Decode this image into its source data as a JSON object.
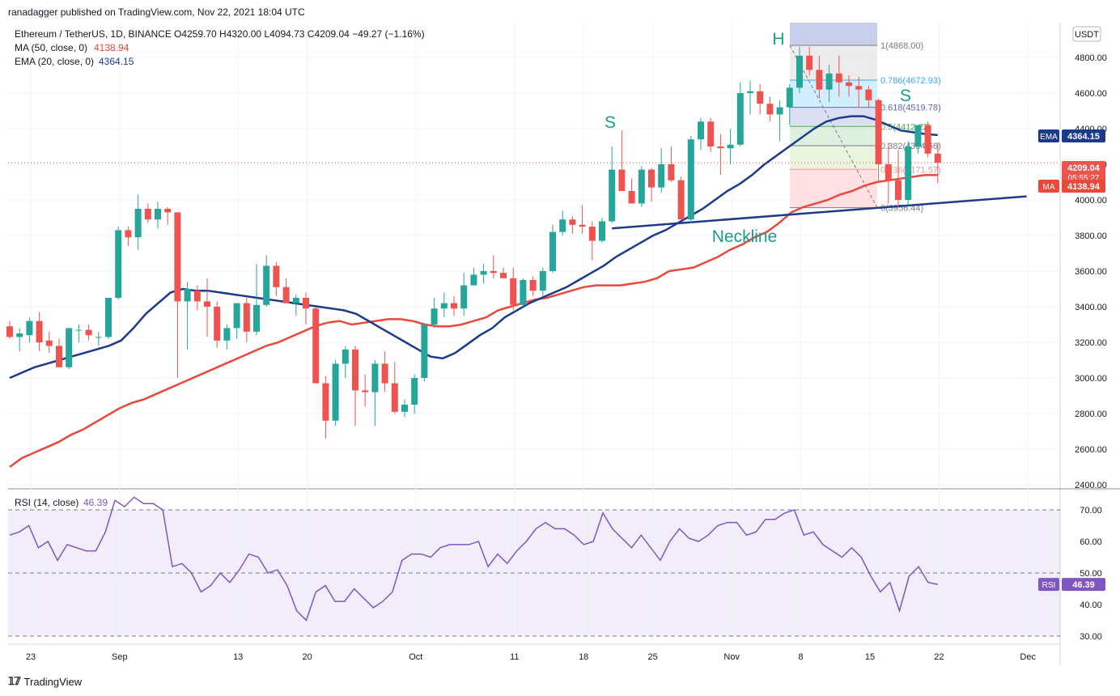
{
  "header": {
    "attribution": "ranadagger published on TradingView.com, Nov 22, 2021 18:04 UTC"
  },
  "footer": {
    "brand": "TradingView"
  },
  "legend": {
    "symbol": "Ethereum / TetherUS, 1D, BINANCE",
    "ohlc": "O4259.70  H4320.00  L4094.73  C4209.04  −49.27 (−1.16%)",
    "ma_label": "MA (50, close, 0)",
    "ma_value": "4138.94",
    "ema_label": "EMA (20, close, 0)",
    "ema_value": "4364.15",
    "rsi_label": "RSI (14, close)",
    "rsi_value": "46.39"
  },
  "currency_badge": "USDT",
  "colors": {
    "up": "#26a69a",
    "down": "#ef5350",
    "ma": "#e8493a",
    "ema": "#1b3a8a",
    "rsi": "#7e57c2",
    "neckline": "#1f3c88",
    "pattern_text": "#1a9c8c"
  },
  "annotations": {
    "head": "H",
    "left_shoulder": "S",
    "right_shoulder": "S",
    "neckline": "Neckline"
  },
  "price_badges": {
    "ema": {
      "tag": "EMA",
      "value": "4364.15",
      "price": 4364.15
    },
    "last": {
      "value": "4209.04",
      "countdown": "05:55:27",
      "price": 4209.04
    },
    "ma": {
      "tag": "MA",
      "value": "4138.94",
      "price": 4138.94
    },
    "rsi": {
      "tag": "RSI",
      "value": "46.39",
      "level": 46.39
    }
  },
  "chart_data": {
    "type": "candlestick",
    "title": "Ethereum / TetherUS, 1D, BINANCE",
    "price_range": [
      2380,
      4980
    ],
    "y_ticks": [
      "2400.00",
      "2600.00",
      "2800.00",
      "3000.00",
      "3200.00",
      "3400.00",
      "3600.00",
      "3800.00",
      "4000.00",
      "4200.00",
      "4400.00",
      "4600.00",
      "4800.00"
    ],
    "x_ticks": [
      {
        "label": "23",
        "day": 0
      },
      {
        "label": "Sep",
        "day": 9
      },
      {
        "label": "13",
        "day": 21
      },
      {
        "label": "20",
        "day": 28
      },
      {
        "label": "Oct",
        "day": 39
      },
      {
        "label": "11",
        "day": 49
      },
      {
        "label": "18",
        "day": 56
      },
      {
        "label": "25",
        "day": 63
      },
      {
        "label": "Nov",
        "day": 71
      },
      {
        "label": "8",
        "day": 78
      },
      {
        "label": "15",
        "day": 85
      },
      {
        "label": "22",
        "day": 92
      },
      {
        "label": "Dec",
        "day": 101
      }
    ],
    "candles": [
      [
        3290,
        3320,
        3220,
        3230
      ],
      [
        3230,
        3280,
        3150,
        3250
      ],
      [
        3240,
        3340,
        3200,
        3320
      ],
      [
        3320,
        3370,
        3150,
        3200
      ],
      [
        3210,
        3260,
        3140,
        3180
      ],
      [
        3180,
        3220,
        3060,
        3060
      ],
      [
        3060,
        3280,
        3050,
        3280
      ],
      [
        3270,
        3300,
        3200,
        3270
      ],
      [
        3270,
        3300,
        3210,
        3240
      ],
      [
        3230,
        3260,
        3180,
        3230
      ],
      [
        3230,
        3450,
        3220,
        3450
      ],
      [
        3450,
        3850,
        3440,
        3830
      ],
      [
        3830,
        3850,
        3740,
        3790
      ],
      [
        3790,
        4030,
        3720,
        3950
      ],
      [
        3950,
        3980,
        3870,
        3890
      ],
      [
        3890,
        3990,
        3840,
        3950
      ],
      [
        3950,
        3960,
        3860,
        3930
      ],
      [
        3930,
        3930,
        3000,
        3430
      ],
      [
        3430,
        3540,
        3160,
        3500
      ],
      [
        3490,
        3520,
        3380,
        3430
      ],
      [
        3430,
        3560,
        3230,
        3400
      ],
      [
        3400,
        3430,
        3170,
        3210
      ],
      [
        3210,
        3300,
        3160,
        3280
      ],
      [
        3280,
        3420,
        3220,
        3420
      ],
      [
        3420,
        3450,
        3200,
        3260
      ],
      [
        3260,
        3640,
        3240,
        3410
      ],
      [
        3410,
        3690,
        3400,
        3630
      ],
      [
        3630,
        3650,
        3460,
        3510
      ],
      [
        3510,
        3560,
        3420,
        3420
      ],
      [
        3420,
        3470,
        3350,
        3450
      ],
      [
        3450,
        3480,
        3300,
        3390
      ],
      [
        3390,
        3400,
        2990,
        2970
      ],
      [
        2970,
        3010,
        2660,
        2760
      ],
      [
        2760,
        3100,
        2730,
        3080
      ],
      [
        3080,
        3180,
        3000,
        3160
      ],
      [
        3160,
        3180,
        2730,
        2930
      ],
      [
        2930,
        3020,
        2840,
        2920
      ],
      [
        2920,
        3100,
        2730,
        3080
      ],
      [
        3080,
        3150,
        2920,
        2970
      ],
      [
        2970,
        3090,
        2800,
        2810
      ],
      [
        2810,
        2880,
        2780,
        2850
      ],
      [
        2850,
        3020,
        2800,
        3000
      ],
      [
        3000,
        3310,
        2980,
        3300
      ],
      [
        3300,
        3450,
        3280,
        3390
      ],
      [
        3390,
        3480,
        3340,
        3420
      ],
      [
        3420,
        3460,
        3350,
        3390
      ],
      [
        3390,
        3590,
        3350,
        3520
      ],
      [
        3520,
        3620,
        3520,
        3580
      ],
      [
        3580,
        3640,
        3530,
        3600
      ],
      [
        3600,
        3690,
        3560,
        3590
      ],
      [
        3590,
        3620,
        3560,
        3560
      ],
      [
        3560,
        3620,
        3380,
        3410
      ],
      [
        3410,
        3560,
        3400,
        3550
      ],
      [
        3550,
        3570,
        3460,
        3490
      ],
      [
        3490,
        3620,
        3460,
        3600
      ],
      [
        3600,
        3860,
        3590,
        3820
      ],
      [
        3820,
        3940,
        3800,
        3890
      ],
      [
        3890,
        3910,
        3810,
        3860
      ],
      [
        3860,
        3970,
        3810,
        3850
      ],
      [
        3850,
        3880,
        3660,
        3770
      ],
      [
        3770,
        3900,
        3760,
        3880
      ],
      [
        3880,
        4300,
        3870,
        4170
      ],
      [
        4170,
        4390,
        4060,
        4050
      ],
      [
        4050,
        4120,
        3980,
        3980
      ],
      [
        3980,
        4190,
        3960,
        4170
      ],
      [
        4170,
        4180,
        3990,
        4070
      ],
      [
        4070,
        4290,
        4040,
        4200
      ],
      [
        4200,
        4300,
        4100,
        4110
      ],
      [
        4110,
        4130,
        3900,
        3890
      ],
      [
        3890,
        4360,
        3870,
        4340
      ],
      [
        4340,
        4460,
        4280,
        4440
      ],
      [
        4440,
        4460,
        4270,
        4300
      ],
      [
        4300,
        4370,
        4140,
        4290
      ],
      [
        4290,
        4400,
        4200,
        4310
      ],
      [
        4310,
        4660,
        4300,
        4600
      ],
      [
        4600,
        4670,
        4480,
        4610
      ],
      [
        4610,
        4650,
        4480,
        4540
      ],
      [
        4540,
        4580,
        4440,
        4480
      ],
      [
        4480,
        4560,
        4330,
        4520
      ],
      [
        4520,
        4650,
        4420,
        4630
      ],
      [
        4630,
        4860,
        4600,
        4810
      ],
      [
        4810,
        4860,
        4700,
        4730
      ],
      [
        4730,
        4810,
        4570,
        4620
      ],
      [
        4620,
        4760,
        4550,
        4710
      ],
      [
        4710,
        4810,
        4580,
        4660
      ],
      [
        4660,
        4700,
        4580,
        4640
      ],
      [
        4640,
        4690,
        4520,
        4620
      ],
      [
        4620,
        4640,
        4520,
        4560
      ],
      [
        4560,
        4570,
        4100,
        4200
      ],
      [
        4200,
        4320,
        3980,
        4110
      ],
      [
        4110,
        4280,
        3960,
        4000
      ],
      [
        4000,
        4330,
        3970,
        4300
      ],
      [
        4300,
        4420,
        4260,
        4420
      ],
      [
        4420,
        4440,
        4240,
        4260
      ],
      [
        4260,
        4320,
        4095,
        4209
      ]
    ],
    "ma50": [
      2500,
      2550,
      2580,
      2610,
      2640,
      2680,
      2710,
      2750,
      2790,
      2830,
      2860,
      2880,
      2910,
      2940,
      2970,
      3000,
      3030,
      3060,
      3090,
      3120,
      3150,
      3180,
      3200,
      3230,
      3260,
      3290,
      3310,
      3320,
      3300,
      3310,
      3320,
      3330,
      3330,
      3320,
      3300,
      3290,
      3290,
      3300,
      3320,
      3340,
      3380,
      3400,
      3420,
      3440,
      3450,
      3470,
      3490,
      3510,
      3520,
      3520,
      3520,
      3530,
      3540,
      3560,
      3600,
      3610,
      3620,
      3650,
      3680,
      3720,
      3750,
      3790,
      3820,
      3870,
      3930,
      3960,
      3980,
      4000,
      4030,
      4050,
      4080,
      4100,
      4110,
      4120,
      4130,
      4140,
      4138.94
    ],
    "ma50_start_day": 0,
    "ema20_start_day": 0,
    "ema20": [
      3000,
      3030,
      3060,
      3080,
      3100,
      3120,
      3140,
      3160,
      3180,
      3210,
      3280,
      3360,
      3420,
      3480,
      3500,
      3490,
      3490,
      3480,
      3470,
      3460,
      3450,
      3440,
      3430,
      3420,
      3410,
      3400,
      3390,
      3380,
      3360,
      3320,
      3280,
      3240,
      3200,
      3160,
      3120,
      3110,
      3140,
      3190,
      3240,
      3280,
      3340,
      3380,
      3420,
      3450,
      3480,
      3510,
      3550,
      3590,
      3630,
      3680,
      3720,
      3760,
      3800,
      3830,
      3870,
      3910,
      3950,
      4000,
      4050,
      4090,
      4140,
      4200,
      4250,
      4300,
      4350,
      4400,
      4440,
      4460,
      4470,
      4470,
      4450,
      4420,
      4390,
      4380,
      4370,
      4364.15
    ],
    "rsi": [
      62,
      63,
      65,
      58,
      60,
      54,
      59,
      58,
      57,
      57,
      63,
      73,
      71,
      74,
      72,
      72,
      70,
      52,
      53,
      50,
      44,
      46,
      50,
      47,
      51,
      56,
      55,
      50,
      51,
      46,
      38,
      35,
      44,
      46,
      41,
      41,
      45,
      42,
      39,
      41,
      44,
      54,
      56,
      56,
      55,
      58,
      59,
      59,
      59,
      60,
      52,
      56,
      53,
      57,
      60,
      64,
      66,
      64,
      64,
      62,
      59,
      60,
      69,
      64,
      61,
      58,
      62,
      58,
      54,
      60,
      64,
      61,
      60,
      62,
      65,
      66,
      66,
      62,
      63,
      67,
      67,
      69,
      70,
      62,
      63,
      59,
      57,
      55,
      58,
      55,
      49,
      44,
      47,
      38,
      49,
      52,
      47,
      46.39
    ],
    "rsi_levels": {
      "upper": 70,
      "middle": 50,
      "lower": 30
    },
    "rsi_ticks": [
      "30.00",
      "40.00",
      "50.00",
      "60.00",
      "70.00"
    ],
    "fibonacci": [
      {
        "label": "1(4868.00)",
        "price": 4868.0
      },
      {
        "label": "0.786(4672.93)",
        "price": 4672.93
      },
      {
        "label": "0.618(4519.78)",
        "price": 4519.78
      },
      {
        "label": "0.5(4412.22)",
        "price": 4412.22
      },
      {
        "label": "0.382(4304.66)",
        "price": 4304.66
      },
      {
        "label": "0.236(4171.57)",
        "price": 4171.57
      },
      {
        "label": "0(3956.44)",
        "price": 3956.44
      }
    ],
    "neckline": [
      {
        "day": 61,
        "price": 3840
      },
      {
        "day": 103,
        "price": 4020
      }
    ]
  }
}
